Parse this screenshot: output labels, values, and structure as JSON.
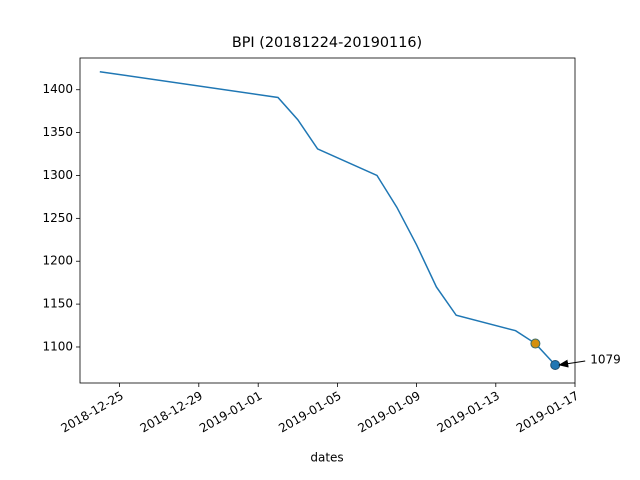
{
  "chart_data": {
    "type": "line",
    "title": "BPI (20181224-20190116)",
    "x_label": "dates",
    "x": [
      "2018-12-24",
      "2019-01-02",
      "2019-01-03",
      "2019-01-04",
      "2019-01-07",
      "2019-01-08",
      "2019-01-09",
      "2019-01-10",
      "2019-01-11",
      "2019-01-14",
      "2019-01-15",
      "2019-01-16"
    ],
    "series": [
      {
        "color": "#1f77b4",
        "values": [
          1421,
          1391,
          1365,
          1331,
          1300,
          1263,
          1219,
          1170,
          1137,
          1119,
          1104,
          1079
        ]
      }
    ],
    "markers": [
      {
        "x": "2019-01-15",
        "value": 1104,
        "color": "#d4900e",
        "edge_color": "#3a6e70"
      },
      {
        "x": "2019-01-16",
        "value": 1079,
        "color": "#1f77b4",
        "edge_color": "#1d4f6e"
      }
    ],
    "annotation": {
      "x": "2019-01-16",
      "value": 1079
    },
    "xlim": [
      "2018-12-23",
      "2019-01-17"
    ],
    "xticks": [
      "2018-12-25",
      "2018-12-29",
      "2019-01-01",
      "2019-01-05",
      "2019-01-09",
      "2019-01-13",
      "2019-01-17"
    ],
    "ylim": [
      1058,
      1437
    ],
    "yticks": [
      1100,
      1150,
      1200,
      1250,
      1300,
      1350,
      1400
    ]
  }
}
